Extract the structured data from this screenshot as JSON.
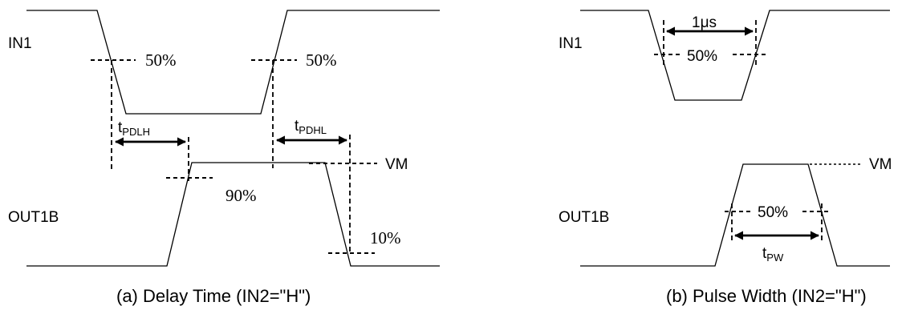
{
  "panel_a": {
    "signal_in": "IN1",
    "signal_out": "OUT1B",
    "pct_50_left": "50%",
    "pct_50_right": "50%",
    "pct_90": "90%",
    "pct_10": "10%",
    "vm_label": "VM",
    "tpdlh": {
      "main": "t",
      "sub": "PDLH"
    },
    "tpdhl": {
      "main": "t",
      "sub": "PDHL"
    },
    "caption": "(a) Delay Time (IN2=\"H\")"
  },
  "panel_b": {
    "signal_in": "IN1",
    "signal_out": "OUT1B",
    "pct_50_in": "50%",
    "pct_50_out": "50%",
    "duration": "1μs",
    "vm_label": "VM",
    "tpw": {
      "main": "t",
      "sub": "PW"
    },
    "caption": "(b) Pulse Width (IN2=\"H\")"
  }
}
